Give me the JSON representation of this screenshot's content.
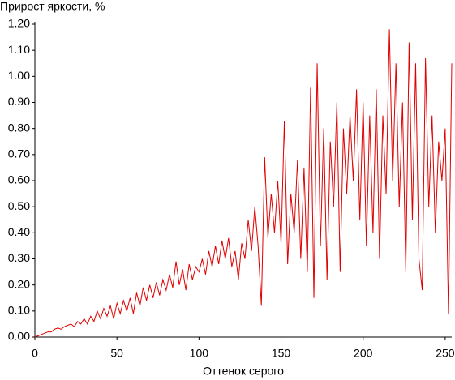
{
  "chart_data": {
    "type": "line",
    "title": "Прирост яркости, %",
    "x_label": "Оттенок серого",
    "x": [
      0,
      2,
      4,
      6,
      8,
      10,
      12,
      14,
      16,
      18,
      20,
      22,
      24,
      26,
      28,
      30,
      32,
      34,
      36,
      38,
      40,
      42,
      44,
      46,
      48,
      50,
      52,
      54,
      56,
      58,
      60,
      62,
      64,
      66,
      68,
      70,
      72,
      74,
      76,
      78,
      80,
      82,
      84,
      86,
      88,
      90,
      92,
      94,
      96,
      98,
      100,
      102,
      104,
      106,
      108,
      110,
      112,
      114,
      116,
      118,
      120,
      122,
      124,
      126,
      128,
      130,
      132,
      134,
      136,
      138,
      140,
      142,
      144,
      146,
      148,
      150,
      152,
      154,
      156,
      158,
      160,
      162,
      164,
      166,
      168,
      170,
      172,
      174,
      176,
      178,
      180,
      182,
      184,
      186,
      188,
      190,
      192,
      194,
      196,
      198,
      200,
      202,
      204,
      206,
      208,
      210,
      212,
      214,
      216,
      218,
      220,
      222,
      224,
      226,
      228,
      230,
      232,
      234,
      236,
      238,
      240,
      242,
      244,
      246,
      248,
      250,
      252,
      254
    ],
    "series": [
      {
        "color": "#e00000",
        "values": [
          0,
          0.005,
          0.01,
          0.015,
          0.02,
          0.02,
          0.03,
          0.035,
          0.03,
          0.04,
          0.045,
          0.05,
          0.04,
          0.06,
          0.05,
          0.07,
          0.05,
          0.08,
          0.06,
          0.1,
          0.07,
          0.11,
          0.08,
          0.12,
          0.07,
          0.13,
          0.09,
          0.14,
          0.1,
          0.15,
          0.09,
          0.17,
          0.12,
          0.19,
          0.14,
          0.2,
          0.15,
          0.21,
          0.16,
          0.22,
          0.18,
          0.24,
          0.19,
          0.29,
          0.2,
          0.26,
          0.18,
          0.28,
          0.22,
          0.27,
          0.25,
          0.3,
          0.24,
          0.33,
          0.27,
          0.35,
          0.28,
          0.37,
          0.3,
          0.38,
          0.27,
          0.33,
          0.22,
          0.36,
          0.3,
          0.45,
          0.33,
          0.5,
          0.35,
          0.12,
          0.69,
          0.38,
          0.55,
          0.4,
          0.6,
          0.36,
          0.83,
          0.28,
          0.55,
          0.4,
          0.68,
          0.3,
          0.65,
          0.25,
          0.96,
          0.15,
          1.05,
          0.35,
          0.8,
          0.22,
          0.75,
          0.5,
          0.9,
          0.25,
          0.8,
          0.55,
          0.85,
          0.6,
          0.95,
          0.45,
          0.9,
          0.35,
          0.85,
          0.4,
          0.95,
          0.3,
          0.85,
          0.55,
          1.18,
          0.6,
          1.05,
          0.5,
          0.9,
          0.25,
          1.13,
          0.45,
          1.05,
          0.3,
          0.18,
          1.07,
          0.5,
          0.85,
          0.4,
          0.75,
          0.6,
          0.8,
          0.09,
          1.05
        ]
      }
    ],
    "xlim": [
      0,
      254
    ],
    "xticks": [
      0,
      50,
      100,
      150,
      200,
      250
    ],
    "ylim": [
      0,
      1.2
    ],
    "yticks": [
      {
        "value": 0,
        "label": "0.00"
      },
      {
        "value": 0.1,
        "label": "0.10"
      },
      {
        "value": 0.2,
        "label": "0.20"
      },
      {
        "value": 0.3,
        "label": "0.30"
      },
      {
        "value": 0.4,
        "label": "0.40"
      },
      {
        "value": 0.5,
        "label": "0.50"
      },
      {
        "value": 0.6,
        "label": "0.60"
      },
      {
        "value": 0.7,
        "label": "0.70"
      },
      {
        "value": 0.8,
        "label": "0.80"
      },
      {
        "value": 0.9,
        "label": "0.90"
      },
      {
        "value": 1.0,
        "label": "1.00"
      },
      {
        "value": 1.1,
        "label": "1.10"
      },
      {
        "value": 1.2,
        "label": "1.20"
      }
    ]
  }
}
